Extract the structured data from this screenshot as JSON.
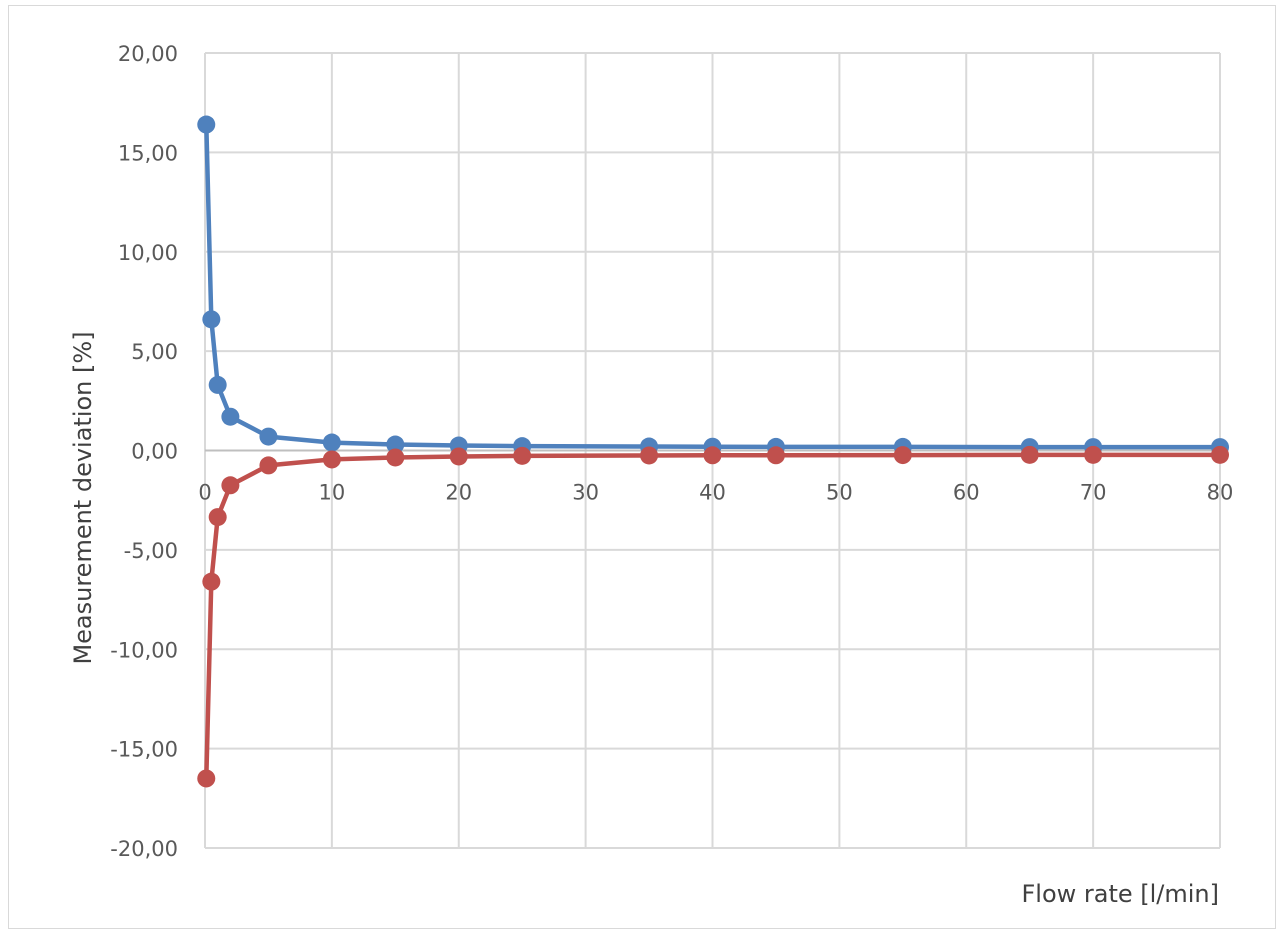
{
  "chart_data": {
    "type": "line",
    "title": "",
    "xlabel": "Flow rate [l/min]",
    "ylabel": "Measurement deviation [%]",
    "xlim": [
      0,
      80
    ],
    "ylim": [
      -20,
      20
    ],
    "x_ticks": [
      "0",
      "10",
      "20",
      "30",
      "40",
      "50",
      "60",
      "70",
      "80"
    ],
    "y_ticks": [
      "20,00",
      "15,00",
      "10,00",
      "5,00",
      "0,00",
      "-5,00",
      "-10,00",
      "-15,00",
      "-20,00"
    ],
    "x_tick_values": [
      0,
      10,
      20,
      30,
      40,
      50,
      60,
      70,
      80
    ],
    "y_tick_values": [
      20,
      15,
      10,
      5,
      0,
      -5,
      -10,
      -15,
      -20
    ],
    "grid": true,
    "markers": "circle",
    "x": [
      0.1,
      0.5,
      1,
      2,
      5,
      10,
      15,
      20,
      25,
      35,
      40,
      45,
      55,
      65,
      70,
      80
    ],
    "series": [
      {
        "color": "#4f81bd",
        "values": [
          16.4,
          6.6,
          3.3,
          1.7,
          0.7,
          0.4,
          0.3,
          0.25,
          0.22,
          0.2,
          0.19,
          0.18,
          0.18,
          0.17,
          0.17,
          0.17
        ]
      },
      {
        "color": "#c0504d",
        "values": [
          -16.5,
          -6.6,
          -3.35,
          -1.75,
          -0.75,
          -0.45,
          -0.35,
          -0.3,
          -0.27,
          -0.25,
          -0.24,
          -0.24,
          -0.23,
          -0.22,
          -0.22,
          -0.22
        ]
      }
    ]
  },
  "colors": {
    "grid": "#d9d9d9",
    "zero_axis": "#bfbfbf",
    "tick_text": "#595959",
    "axis_title": "#404040"
  }
}
